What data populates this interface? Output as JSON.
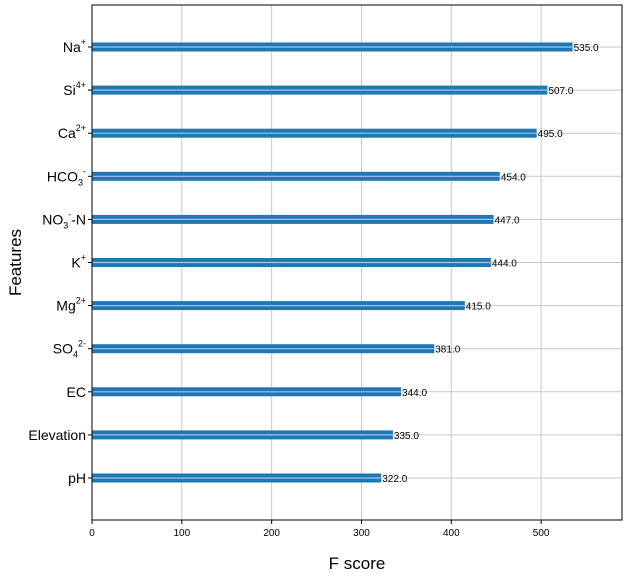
{
  "chart_data": {
    "type": "bar",
    "orientation": "horizontal",
    "xlabel": "F score",
    "ylabel": "Features",
    "xlim": [
      0,
      590
    ],
    "x_ticks": [
      0,
      100,
      200,
      300,
      400,
      500
    ],
    "grid": true,
    "bar_color": "#1f77b4",
    "categories": [
      {
        "base": "Na",
        "sup": "+",
        "sub": "",
        "tail": ""
      },
      {
        "base": "Si",
        "sup": "4+",
        "sub": "",
        "tail": ""
      },
      {
        "base": "Ca",
        "sup": "2+",
        "sub": "",
        "tail": ""
      },
      {
        "base": "HCO",
        "sup": "-",
        "sub": "3",
        "tail": ""
      },
      {
        "base": "NO",
        "sup": "-",
        "sub": "3",
        "tail": "-N"
      },
      {
        "base": "K",
        "sup": "+",
        "sub": "",
        "tail": ""
      },
      {
        "base": "Mg",
        "sup": "2+",
        "sub": "",
        "tail": ""
      },
      {
        "base": "SO",
        "sup": "2-",
        "sub": "4",
        "tail": ""
      },
      {
        "base": "EC",
        "sup": "",
        "sub": "",
        "tail": ""
      },
      {
        "base": "Elevation",
        "sup": "",
        "sub": "",
        "tail": ""
      },
      {
        "base": "pH",
        "sup": "",
        "sub": "",
        "tail": ""
      }
    ],
    "values": [
      535,
      507,
      495,
      454,
      447,
      444,
      415,
      381,
      344,
      335,
      322
    ],
    "value_labels": [
      "535.0",
      "507.0",
      "495.0",
      "454.0",
      "447.0",
      "444.0",
      "415.0",
      "381.0",
      "344.0",
      "335.0",
      "322.0"
    ]
  }
}
